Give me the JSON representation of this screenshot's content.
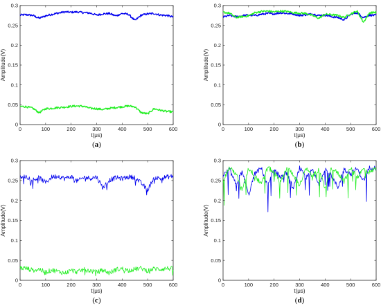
{
  "chart_data": [
    {
      "type": "line",
      "panel_label": "a",
      "xlabel": "t(μs)",
      "ylabel": "Amplitude(V)",
      "xlim": [
        0,
        600
      ],
      "ylim": [
        0,
        0.3
      ],
      "x_ticks": [
        "0",
        "100",
        "200",
        "300",
        "400",
        "500",
        "600"
      ],
      "y_ticks": [
        "0",
        "0.05",
        "0.1",
        "0.15",
        "0.2",
        "0.25",
        "0.3"
      ],
      "x": [
        0,
        25,
        50,
        75,
        100,
        125,
        150,
        175,
        200,
        225,
        250,
        275,
        300,
        325,
        350,
        375,
        400,
        425,
        450,
        475,
        500,
        525,
        550,
        575,
        600
      ],
      "series": [
        {
          "color": "#0000ee",
          "values": [
            0.276,
            0.277,
            0.275,
            0.268,
            0.274,
            0.278,
            0.281,
            0.284,
            0.283,
            0.284,
            0.282,
            0.281,
            0.276,
            0.279,
            0.28,
            0.274,
            0.28,
            0.278,
            0.262,
            0.276,
            0.279,
            0.28,
            0.276,
            0.275,
            0.271
          ]
        },
        {
          "color": "#22ee22",
          "values": [
            0.046,
            0.045,
            0.041,
            0.03,
            0.04,
            0.041,
            0.043,
            0.044,
            0.046,
            0.047,
            0.046,
            0.041,
            0.04,
            0.038,
            0.041,
            0.043,
            0.045,
            0.047,
            0.045,
            0.03,
            0.027,
            0.04,
            0.036,
            0.033,
            0.032
          ]
        }
      ]
    },
    {
      "type": "line",
      "panel_label": "b",
      "xlabel": "t(μs)",
      "ylabel": "Amplitude(V)",
      "xlim": [
        0,
        600
      ],
      "ylim": [
        0,
        0.3
      ],
      "x_ticks": [
        "0",
        "100",
        "200",
        "300",
        "400",
        "500",
        "600"
      ],
      "y_ticks": [
        "0",
        "0.05",
        "0.1",
        "0.15",
        "0.2",
        "0.25",
        "0.3"
      ],
      "x": [
        0,
        25,
        50,
        75,
        100,
        125,
        150,
        175,
        200,
        225,
        250,
        275,
        300,
        325,
        350,
        375,
        400,
        425,
        450,
        475,
        500,
        525,
        550,
        575,
        600
      ],
      "series": [
        {
          "color": "#0000ee",
          "values": [
            0.271,
            0.275,
            0.272,
            0.274,
            0.276,
            0.275,
            0.278,
            0.28,
            0.279,
            0.282,
            0.28,
            0.279,
            0.275,
            0.277,
            0.279,
            0.275,
            0.276,
            0.272,
            0.27,
            0.264,
            0.278,
            0.282,
            0.27,
            0.276,
            0.275
          ]
        },
        {
          "color": "#22ee22",
          "values": [
            0.283,
            0.281,
            0.27,
            0.272,
            0.274,
            0.282,
            0.285,
            0.286,
            0.284,
            0.286,
            0.285,
            0.282,
            0.281,
            0.28,
            0.275,
            0.268,
            0.278,
            0.277,
            0.275,
            0.27,
            0.279,
            0.286,
            0.258,
            0.282,
            0.283
          ]
        }
      ]
    },
    {
      "type": "line",
      "panel_label": "c",
      "xlabel": "t(μs)",
      "ylabel": "Amplitude(V)",
      "xlim": [
        0,
        600
      ],
      "ylim": [
        0,
        0.3
      ],
      "x_ticks": [
        "0",
        "100",
        "200",
        "300",
        "400",
        "500",
        "600"
      ],
      "y_ticks": [
        "0",
        "0.05",
        "0.1",
        "0.15",
        "0.2",
        "0.25",
        "0.3"
      ],
      "x": [
        0,
        25,
        50,
        75,
        100,
        125,
        150,
        175,
        200,
        225,
        250,
        275,
        300,
        325,
        350,
        375,
        400,
        425,
        450,
        475,
        500,
        525,
        550,
        575,
        600
      ],
      "series": [
        {
          "color": "#0000ee",
          "values": [
            0.258,
            0.26,
            0.252,
            0.257,
            0.245,
            0.259,
            0.261,
            0.255,
            0.26,
            0.248,
            0.258,
            0.256,
            0.259,
            0.232,
            0.251,
            0.257,
            0.255,
            0.259,
            0.258,
            0.243,
            0.226,
            0.258,
            0.255,
            0.259,
            0.261
          ]
        },
        {
          "color": "#22ee22",
          "values": [
            0.031,
            0.03,
            0.025,
            0.028,
            0.02,
            0.026,
            0.022,
            0.018,
            0.025,
            0.021,
            0.027,
            0.024,
            0.02,
            0.026,
            0.018,
            0.027,
            0.029,
            0.025,
            0.028,
            0.03,
            0.024,
            0.029,
            0.028,
            0.03,
            0.029
          ]
        }
      ]
    },
    {
      "type": "line",
      "panel_label": "d",
      "xlabel": "t(μs)",
      "ylabel": "Amplitude(V)",
      "xlim": [
        0,
        600
      ],
      "ylim": [
        0,
        0.3
      ],
      "x_ticks": [
        "0",
        "100",
        "200",
        "300",
        "400",
        "500",
        "600"
      ],
      "y_ticks": [
        "0",
        "0.05",
        "0.1",
        "0.15",
        "0.2",
        "0.25",
        "0.3"
      ],
      "x": [
        0,
        25,
        50,
        75,
        100,
        125,
        150,
        175,
        200,
        225,
        250,
        275,
        300,
        325,
        350,
        375,
        400,
        425,
        450,
        475,
        500,
        525,
        550,
        575,
        600
      ],
      "series": [
        {
          "color": "#0000ee",
          "values": [
            0.262,
            0.278,
            0.24,
            0.272,
            0.214,
            0.268,
            0.281,
            0.235,
            0.279,
            0.258,
            0.27,
            0.228,
            0.282,
            0.255,
            0.276,
            0.24,
            0.28,
            0.262,
            0.232,
            0.279,
            0.266,
            0.28,
            0.25,
            0.283,
            0.281
          ]
        },
        {
          "color": "#22ee22",
          "values": [
            0.25,
            0.282,
            0.268,
            0.225,
            0.281,
            0.262,
            0.24,
            0.283,
            0.27,
            0.245,
            0.282,
            0.266,
            0.238,
            0.28,
            0.261,
            0.277,
            0.232,
            0.282,
            0.268,
            0.25,
            0.281,
            0.258,
            0.279,
            0.27,
            0.282
          ]
        }
      ]
    }
  ]
}
